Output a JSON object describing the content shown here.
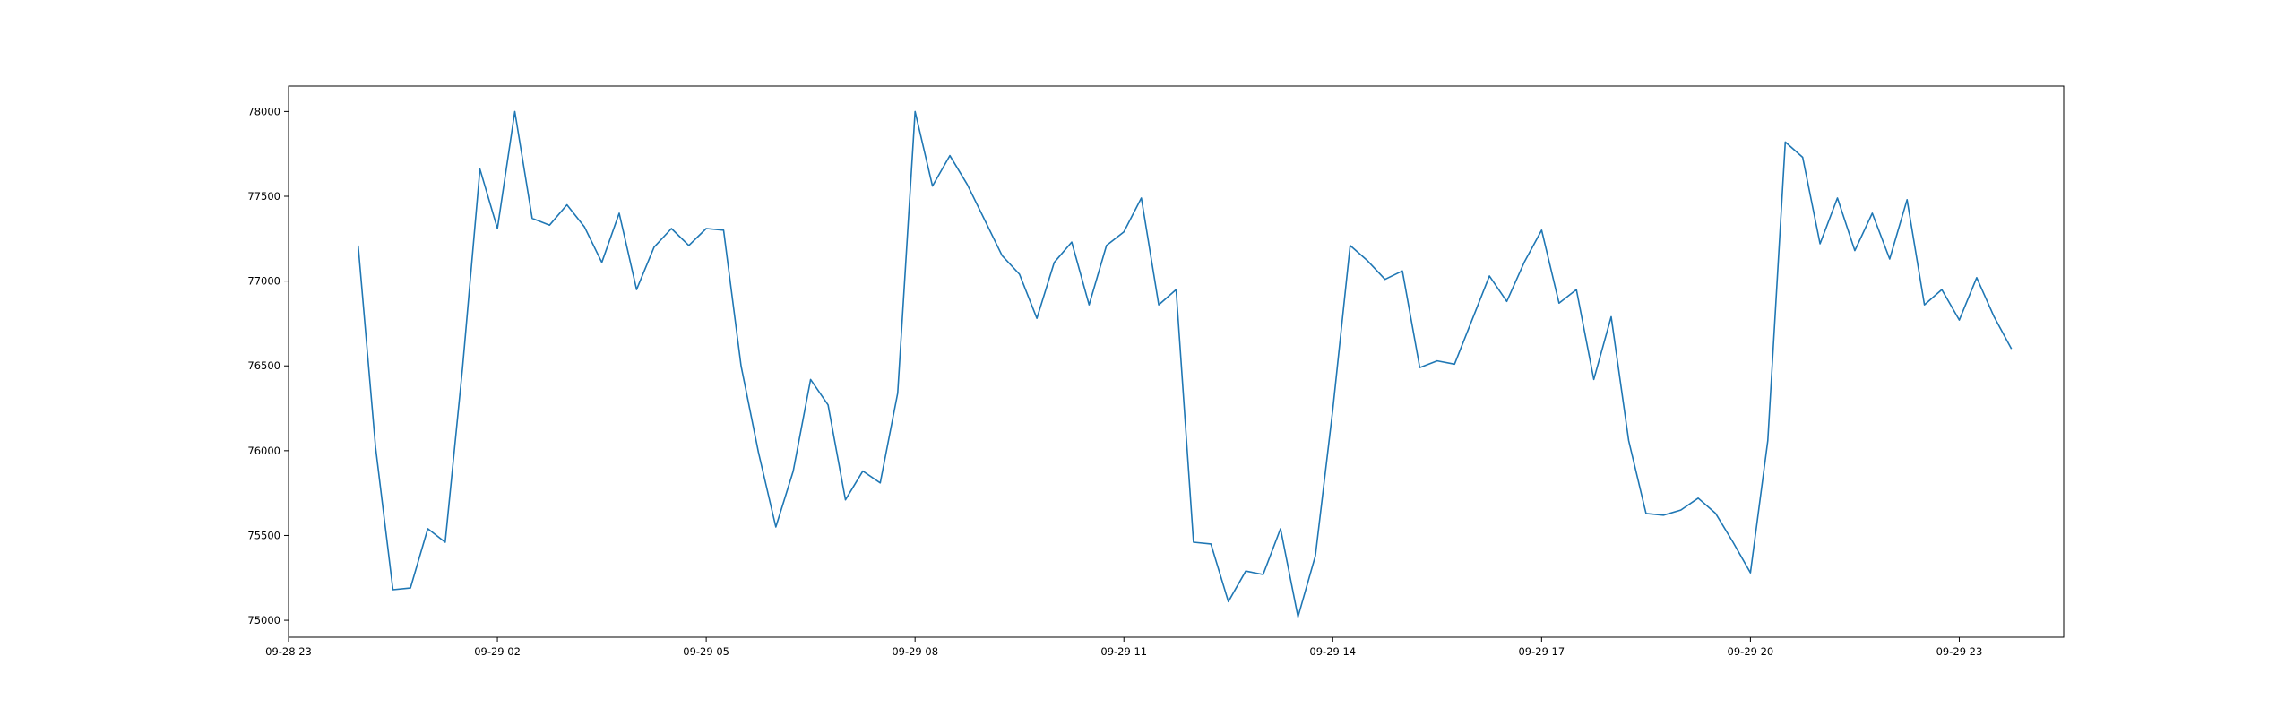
{
  "chart_data": {
    "type": "line",
    "title": "",
    "xlabel": "",
    "ylabel": "",
    "x_axis_type": "datetime",
    "xlim": [
      "2024-09-28 23:00",
      "2024-09-30 00:30"
    ],
    "ylim": [
      74900,
      78150
    ],
    "grid": false,
    "legend": "none",
    "line_color": "#1f77b4",
    "xticks": [
      {
        "x": "2024-09-28 23:00",
        "label": "09-28 23"
      },
      {
        "x": "2024-09-29 02:00",
        "label": "09-29 02"
      },
      {
        "x": "2024-09-29 05:00",
        "label": "09-29 05"
      },
      {
        "x": "2024-09-29 08:00",
        "label": "09-29 08"
      },
      {
        "x": "2024-09-29 11:00",
        "label": "09-29 11"
      },
      {
        "x": "2024-09-29 14:00",
        "label": "09-29 14"
      },
      {
        "x": "2024-09-29 17:00",
        "label": "09-29 17"
      },
      {
        "x": "2024-09-29 20:00",
        "label": "09-29 20"
      },
      {
        "x": "2024-09-29 23:00",
        "label": "09-29 23"
      }
    ],
    "yticks": [
      {
        "y": 75000,
        "label": "75000"
      },
      {
        "y": 75500,
        "label": "75500"
      },
      {
        "y": 76000,
        "label": "76000"
      },
      {
        "y": 76500,
        "label": "76500"
      },
      {
        "y": 77000,
        "label": "77000"
      },
      {
        "y": 77500,
        "label": "77500"
      },
      {
        "y": 78000,
        "label": "78000"
      }
    ],
    "series": [
      {
        "x": [
          "2024-09-29 00:00",
          "2024-09-29 00:15",
          "2024-09-29 00:30",
          "2024-09-29 00:45",
          "2024-09-29 01:00",
          "2024-09-29 01:15",
          "2024-09-29 01:30",
          "2024-09-29 01:45",
          "2024-09-29 02:00",
          "2024-09-29 02:15",
          "2024-09-29 02:30",
          "2024-09-29 02:45",
          "2024-09-29 03:00",
          "2024-09-29 03:15",
          "2024-09-29 03:30",
          "2024-09-29 03:45",
          "2024-09-29 04:00",
          "2024-09-29 04:15",
          "2024-09-29 04:30",
          "2024-09-29 04:45",
          "2024-09-29 05:00",
          "2024-09-29 05:15",
          "2024-09-29 05:30",
          "2024-09-29 05:45",
          "2024-09-29 06:00",
          "2024-09-29 06:15",
          "2024-09-29 06:30",
          "2024-09-29 06:45",
          "2024-09-29 07:00",
          "2024-09-29 07:15",
          "2024-09-29 07:30",
          "2024-09-29 07:45",
          "2024-09-29 08:00",
          "2024-09-29 08:15",
          "2024-09-29 08:30",
          "2024-09-29 08:45",
          "2024-09-29 09:00",
          "2024-09-29 09:15",
          "2024-09-29 09:30",
          "2024-09-29 09:45",
          "2024-09-29 10:00",
          "2024-09-29 10:15",
          "2024-09-29 10:30",
          "2024-09-29 10:45",
          "2024-09-29 11:00",
          "2024-09-29 11:15",
          "2024-09-29 11:30",
          "2024-09-29 11:45",
          "2024-09-29 12:00",
          "2024-09-29 12:15",
          "2024-09-29 12:30",
          "2024-09-29 12:45",
          "2024-09-29 13:00",
          "2024-09-29 13:15",
          "2024-09-29 13:30",
          "2024-09-29 13:45",
          "2024-09-29 14:00",
          "2024-09-29 14:15",
          "2024-09-29 14:30",
          "2024-09-29 14:45",
          "2024-09-29 15:00",
          "2024-09-29 15:15",
          "2024-09-29 15:30",
          "2024-09-29 15:45",
          "2024-09-29 16:00",
          "2024-09-29 16:15",
          "2024-09-29 16:30",
          "2024-09-29 16:45",
          "2024-09-29 17:00",
          "2024-09-29 17:15",
          "2024-09-29 17:30",
          "2024-09-29 17:45",
          "2024-09-29 18:00",
          "2024-09-29 18:15",
          "2024-09-29 18:30",
          "2024-09-29 18:45",
          "2024-09-29 19:00",
          "2024-09-29 19:15",
          "2024-09-29 19:30",
          "2024-09-29 19:45",
          "2024-09-29 20:00",
          "2024-09-29 20:15",
          "2024-09-29 20:30",
          "2024-09-29 20:45",
          "2024-09-29 21:00",
          "2024-09-29 21:15",
          "2024-09-29 21:30",
          "2024-09-29 21:45",
          "2024-09-29 22:00",
          "2024-09-29 22:15",
          "2024-09-29 22:30",
          "2024-09-29 22:45",
          "2024-09-29 23:00",
          "2024-09-29 23:15",
          "2024-09-29 23:30",
          "2024-09-29 23:45"
        ],
        "values": [
          77210,
          76020,
          75180,
          75190,
          75540,
          75460,
          76490,
          77660,
          77310,
          78000,
          77370,
          77330,
          77450,
          77320,
          77110,
          77400,
          76950,
          77200,
          77310,
          77210,
          77310,
          77300,
          76500,
          75990,
          75550,
          75880,
          76420,
          76270,
          75710,
          75880,
          75810,
          76340,
          78000,
          77560,
          77740,
          77570,
          77360,
          77150,
          77040,
          76780,
          77110,
          77230,
          76860,
          77210,
          77290,
          77490,
          76860,
          76950,
          75460,
          75450,
          75110,
          75290,
          75270,
          75540,
          75020,
          75380,
          76240,
          77210,
          77120,
          77010,
          77060,
          76490,
          76530,
          76510,
          76770,
          77030,
          76880,
          77110,
          77300,
          76870,
          76950,
          76420,
          76790,
          76060,
          75630,
          75620,
          75650,
          75720,
          75630,
          75460,
          75280,
          76060,
          77820,
          77730,
          77220,
          77490,
          77180,
          77400,
          77130,
          77480,
          76860,
          76950,
          76770,
          77020,
          76790,
          76600
        ]
      }
    ]
  }
}
